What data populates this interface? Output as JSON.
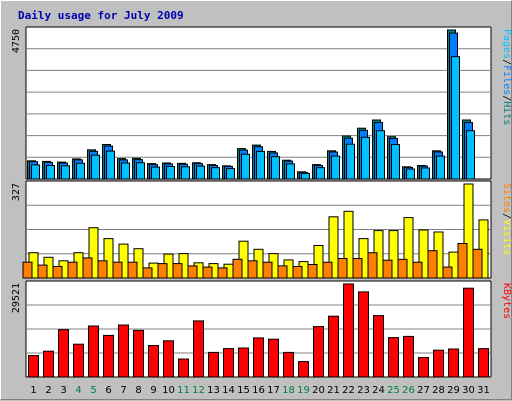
{
  "chart_data": {
    "type": "bar",
    "title": "Daily usage for July 2009",
    "categories": [
      "1",
      "2",
      "3",
      "4",
      "5",
      "6",
      "7",
      "8",
      "9",
      "10",
      "11",
      "12",
      "13",
      "14",
      "15",
      "16",
      "17",
      "18",
      "19",
      "20",
      "21",
      "22",
      "23",
      "24",
      "25",
      "26",
      "27",
      "28",
      "29",
      "30",
      "31"
    ],
    "weekend_days": [
      "4",
      "5",
      "11",
      "12",
      "18",
      "19",
      "25",
      "26"
    ],
    "colors": {
      "pages": "#00c0ff",
      "files": "#0080ff",
      "hits": "#008080",
      "sites": "#ff8000",
      "visits": "#ffff00",
      "kbytes": "#ff0000",
      "weekday_label": "#000000",
      "weekend_label": "#008040",
      "title": "#0000b0",
      "plot_bg": "#ffffff",
      "frame": "#c0c0c0"
    },
    "panels": [
      {
        "id": "pages-files-hits",
        "ymax_label": "4750",
        "ylim": [
          0,
          4750
        ],
        "legend": [
          {
            "text": "Pages",
            "color": "#00c0ff"
          },
          {
            "text": "/",
            "color": "#000000"
          },
          {
            "text": "Files",
            "color": "#0080ff"
          },
          {
            "text": "/",
            "color": "#000000"
          },
          {
            "text": "Hits",
            "color": "#008080"
          }
        ],
        "series": [
          {
            "name": "Hits",
            "values": [
              580,
              560,
              540,
              640,
              930,
              1100,
              650,
              660,
              490,
              510,
              500,
              520,
              460,
              420,
              970,
              1080,
              880,
              600,
              230,
              460,
              900,
              1370,
              1620,
              1880,
              1350,
              390,
              430,
              900,
              4750,
              1880,
              0
            ]
          },
          {
            "name": "Files",
            "values": [
              550,
              530,
              510,
              610,
              880,
              1050,
              610,
              620,
              460,
              480,
              470,
              490,
              430,
              400,
              920,
              1030,
              830,
              570,
              210,
              430,
              860,
              1300,
              1550,
              1800,
              1290,
              370,
              410,
              860,
              4650,
              1800,
              0
            ]
          },
          {
            "name": "Pages",
            "values": [
              450,
              430,
              420,
              500,
              760,
              890,
              510,
              520,
              380,
              400,
              390,
              410,
              360,
              330,
              790,
              880,
              710,
              480,
              180,
              360,
              730,
              1110,
              1330,
              1540,
              1100,
              320,
              350,
              730,
              3900,
              1540,
              0
            ]
          }
        ]
      },
      {
        "id": "sites-visits",
        "ymax_label": "327",
        "ylim": [
          0,
          327
        ],
        "legend": [
          {
            "text": "Sites",
            "color": "#ff8000"
          },
          {
            "text": "/",
            "color": "#000000"
          },
          {
            "text": "Visits",
            "color": "#ffff00"
          }
        ],
        "series": [
          {
            "name": "Visits",
            "values": [
              88,
              72,
              60,
              88,
              175,
              137,
              118,
              102,
              52,
              83,
              85,
              53,
              50,
              48,
              128,
              100,
              85,
              63,
              57,
              113,
              213,
              232,
              137,
              165,
              165,
              210,
              167,
              160,
              90,
              327,
              202
            ]
          },
          {
            "name": "Sites",
            "values": [
              55,
              45,
              40,
              55,
              70,
              60,
              55,
              55,
              35,
              50,
              50,
              42,
              38,
              35,
              65,
              60,
              55,
              42,
              40,
              47,
              55,
              68,
              68,
              88,
              62,
              65,
              55,
              95,
              38,
              120,
              100
            ]
          }
        ]
      },
      {
        "id": "kbytes",
        "ymax_label": "29521",
        "ylim": [
          0,
          29521
        ],
        "legend": [
          {
            "text": "KBytes",
            "color": "#ff0000"
          }
        ],
        "series": [
          {
            "name": "KBytes",
            "values": [
              6800,
              8200,
              15000,
              10400,
              16200,
              13200,
              16500,
              14800,
              10000,
              11500,
              5700,
              17800,
              7800,
              9000,
              9200,
              12400,
              12000,
              7800,
              4900,
              16000,
              19300,
              29521,
              27000,
              19500,
              12500,
              12900,
              6200,
              8500,
              8900,
              28200,
              9000
            ]
          }
        ]
      }
    ]
  }
}
